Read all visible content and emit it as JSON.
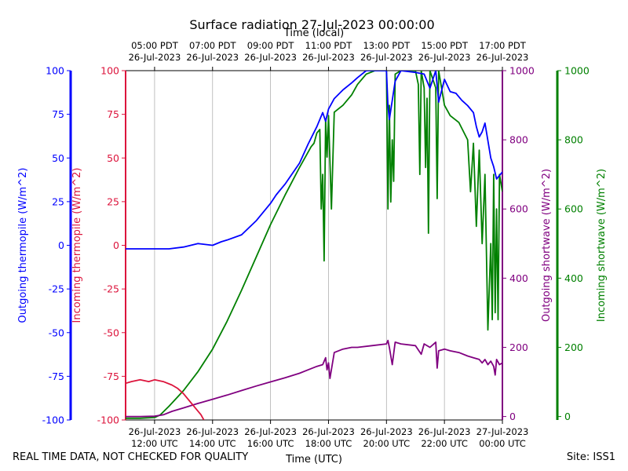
{
  "chart_data": {
    "type": "line",
    "title": "Surface radiation 27-Jul-2023 00:00:00",
    "footer_left": "REAL TIME DATA, NOT CHECKED FOR QUALITY",
    "footer_right": "Site: ISS1",
    "x_top_label": "Time (local)",
    "x_bottom_label": "Time (UTC)",
    "x_range_utc_hours": [
      11.0,
      24.0
    ],
    "x_ticks_utc_hours": [
      12,
      14,
      16,
      18,
      20,
      22,
      24
    ],
    "x_bottom_tick_labels": [
      [
        "26-Jul-2023",
        "12:00 UTC"
      ],
      [
        "26-Jul-2023",
        "14:00 UTC"
      ],
      [
        "26-Jul-2023",
        "16:00 UTC"
      ],
      [
        "26-Jul-2023",
        "18:00 UTC"
      ],
      [
        "26-Jul-2023",
        "20:00 UTC"
      ],
      [
        "26-Jul-2023",
        "22:00 UTC"
      ],
      [
        "27-Jul-2023",
        "00:00 UTC"
      ]
    ],
    "x_top_tick_labels": [
      [
        "05:00 PDT",
        "26-Jul-2023"
      ],
      [
        "07:00 PDT",
        "26-Jul-2023"
      ],
      [
        "09:00 PDT",
        "26-Jul-2023"
      ],
      [
        "11:00 PDT",
        "26-Jul-2023"
      ],
      [
        "13:00 PDT",
        "26-Jul-2023"
      ],
      [
        "15:00 PDT",
        "26-Jul-2023"
      ],
      [
        "17:00 PDT",
        "26-Jul-2023"
      ]
    ],
    "axes": {
      "outgoing_thermopile": {
        "label": "Outgoing thermopile (W/m^2)",
        "color": "#0000ff",
        "ylim": [
          -100,
          100
        ],
        "ticks": [
          -100,
          -75,
          -50,
          -25,
          0,
          25,
          50,
          75,
          100
        ]
      },
      "incoming_thermopile": {
        "label": "Incoming thermopile (W/m^2)",
        "color": "#dc143c",
        "ylim": [
          -100,
          100
        ],
        "ticks": [
          -100,
          -75,
          -50,
          -25,
          0,
          25,
          50,
          75,
          100
        ]
      },
      "outgoing_shortwave": {
        "label": "Outgoing shortwave (W/m^2)",
        "color": "#800080",
        "ylim": [
          -10,
          1000
        ],
        "ticks": [
          0,
          200,
          400,
          600,
          800,
          1000
        ]
      },
      "incoming_shortwave": {
        "label": "Incoming shortwave (W/m^2)",
        "color": "#008000",
        "ylim": [
          -10,
          1000
        ],
        "ticks": [
          0,
          200,
          400,
          600,
          800,
          1000
        ]
      }
    },
    "grid": "vertical",
    "series": [
      {
        "axis": "outgoing_thermopile",
        "color": "#0000ff",
        "points": [
          [
            11.0,
            -2
          ],
          [
            11.5,
            -2
          ],
          [
            12.0,
            -2
          ],
          [
            12.5,
            -2
          ],
          [
            13.0,
            -1
          ],
          [
            13.5,
            1
          ],
          [
            14.0,
            0
          ],
          [
            14.3,
            2
          ],
          [
            14.5,
            3
          ],
          [
            15.0,
            6
          ],
          [
            15.5,
            14
          ],
          [
            16.0,
            24
          ],
          [
            16.2,
            29
          ],
          [
            16.5,
            35
          ],
          [
            17.0,
            47
          ],
          [
            17.3,
            58
          ],
          [
            17.6,
            68
          ],
          [
            17.8,
            76
          ],
          [
            17.9,
            71
          ],
          [
            18.0,
            78
          ],
          [
            18.2,
            84
          ],
          [
            18.5,
            89
          ],
          [
            18.8,
            93
          ],
          [
            19.0,
            96
          ],
          [
            19.3,
            100
          ],
          [
            19.7,
            100
          ],
          [
            20.0,
            100
          ],
          [
            20.05,
            80
          ],
          [
            20.1,
            72
          ],
          [
            20.3,
            94
          ],
          [
            20.5,
            100
          ],
          [
            21.0,
            99
          ],
          [
            21.3,
            98
          ],
          [
            21.5,
            90
          ],
          [
            21.7,
            100
          ],
          [
            21.8,
            82
          ],
          [
            22.0,
            95
          ],
          [
            22.2,
            88
          ],
          [
            22.4,
            87
          ],
          [
            22.6,
            83
          ],
          [
            22.8,
            80
          ],
          [
            23.0,
            76
          ],
          [
            23.1,
            68
          ],
          [
            23.2,
            62
          ],
          [
            23.3,
            65
          ],
          [
            23.4,
            70
          ],
          [
            23.5,
            60
          ],
          [
            23.6,
            50
          ],
          [
            23.7,
            45
          ],
          [
            23.8,
            38
          ],
          [
            23.9,
            40
          ],
          [
            24.0,
            42
          ]
        ]
      },
      {
        "axis": "incoming_thermopile",
        "color": "#dc143c",
        "points": [
          [
            11.0,
            -79
          ],
          [
            11.2,
            -78
          ],
          [
            11.5,
            -77
          ],
          [
            11.8,
            -78
          ],
          [
            12.0,
            -77
          ],
          [
            12.3,
            -78
          ],
          [
            12.6,
            -80
          ],
          [
            12.8,
            -82
          ],
          [
            13.0,
            -85
          ],
          [
            13.2,
            -89
          ],
          [
            13.4,
            -93
          ],
          [
            13.6,
            -97
          ],
          [
            13.7,
            -100
          ]
        ]
      },
      {
        "axis": "outgoing_shortwave",
        "color": "#800080",
        "points": [
          [
            11.0,
            0
          ],
          [
            11.5,
            0
          ],
          [
            12.0,
            1
          ],
          [
            12.3,
            5
          ],
          [
            12.6,
            15
          ],
          [
            13.0,
            25
          ],
          [
            13.5,
            38
          ],
          [
            14.0,
            50
          ],
          [
            14.5,
            62
          ],
          [
            15.0,
            75
          ],
          [
            15.5,
            88
          ],
          [
            16.0,
            100
          ],
          [
            16.5,
            112
          ],
          [
            17.0,
            125
          ],
          [
            17.3,
            135
          ],
          [
            17.6,
            145
          ],
          [
            17.8,
            150
          ],
          [
            17.9,
            170
          ],
          [
            17.95,
            135
          ],
          [
            18.0,
            155
          ],
          [
            18.05,
            110
          ],
          [
            18.2,
            185
          ],
          [
            18.5,
            195
          ],
          [
            18.8,
            200
          ],
          [
            19.0,
            200
          ],
          [
            19.5,
            205
          ],
          [
            20.0,
            210
          ],
          [
            20.05,
            220
          ],
          [
            20.1,
            200
          ],
          [
            20.2,
            150
          ],
          [
            20.3,
            215
          ],
          [
            20.5,
            210
          ],
          [
            21.0,
            205
          ],
          [
            21.2,
            180
          ],
          [
            21.3,
            210
          ],
          [
            21.5,
            200
          ],
          [
            21.7,
            215
          ],
          [
            21.75,
            140
          ],
          [
            21.8,
            190
          ],
          [
            22.0,
            195
          ],
          [
            22.2,
            190
          ],
          [
            22.5,
            185
          ],
          [
            22.8,
            175
          ],
          [
            23.0,
            170
          ],
          [
            23.2,
            165
          ],
          [
            23.3,
            155
          ],
          [
            23.4,
            165
          ],
          [
            23.5,
            150
          ],
          [
            23.6,
            160
          ],
          [
            23.7,
            145
          ],
          [
            23.75,
            120
          ],
          [
            23.8,
            165
          ],
          [
            23.9,
            150
          ],
          [
            24.0,
            155
          ]
        ]
      },
      {
        "axis": "incoming_shortwave",
        "color": "#008000",
        "points": [
          [
            11.0,
            -5
          ],
          [
            11.5,
            -5
          ],
          [
            12.0,
            -3
          ],
          [
            12.2,
            5
          ],
          [
            12.5,
            30
          ],
          [
            13.0,
            75
          ],
          [
            13.5,
            130
          ],
          [
            14.0,
            195
          ],
          [
            14.5,
            275
          ],
          [
            15.0,
            365
          ],
          [
            15.5,
            460
          ],
          [
            16.0,
            555
          ],
          [
            16.5,
            640
          ],
          [
            17.0,
            720
          ],
          [
            17.4,
            780
          ],
          [
            17.5,
            790
          ],
          [
            17.6,
            820
          ],
          [
            17.7,
            830
          ],
          [
            17.75,
            600
          ],
          [
            17.8,
            700
          ],
          [
            17.85,
            450
          ],
          [
            17.9,
            860
          ],
          [
            17.95,
            750
          ],
          [
            18.0,
            870
          ],
          [
            18.1,
            600
          ],
          [
            18.2,
            880
          ],
          [
            18.5,
            900
          ],
          [
            18.8,
            930
          ],
          [
            19.0,
            960
          ],
          [
            19.3,
            990
          ],
          [
            19.6,
            1000
          ],
          [
            20.0,
            1000
          ],
          [
            20.05,
            600
          ],
          [
            20.1,
            900
          ],
          [
            20.15,
            620
          ],
          [
            20.2,
            800
          ],
          [
            20.25,
            680
          ],
          [
            20.3,
            990
          ],
          [
            20.5,
            1000
          ],
          [
            21.0,
            1000
          ],
          [
            21.1,
            960
          ],
          [
            21.15,
            700
          ],
          [
            21.2,
            1000
          ],
          [
            21.3,
            950
          ],
          [
            21.35,
            720
          ],
          [
            21.4,
            920
          ],
          [
            21.45,
            530
          ],
          [
            21.5,
            1000
          ],
          [
            21.7,
            950
          ],
          [
            21.75,
            630
          ],
          [
            21.8,
            1000
          ],
          [
            22.0,
            900
          ],
          [
            22.2,
            870
          ],
          [
            22.5,
            850
          ],
          [
            22.8,
            800
          ],
          [
            22.9,
            650
          ],
          [
            23.0,
            790
          ],
          [
            23.1,
            550
          ],
          [
            23.2,
            770
          ],
          [
            23.3,
            500
          ],
          [
            23.4,
            700
          ],
          [
            23.5,
            250
          ],
          [
            23.6,
            500
          ],
          [
            23.65,
            280
          ],
          [
            23.7,
            700
          ],
          [
            23.75,
            300
          ],
          [
            23.8,
            600
          ],
          [
            23.85,
            280
          ],
          [
            23.9,
            700
          ],
          [
            24.0,
            650
          ]
        ]
      }
    ]
  }
}
